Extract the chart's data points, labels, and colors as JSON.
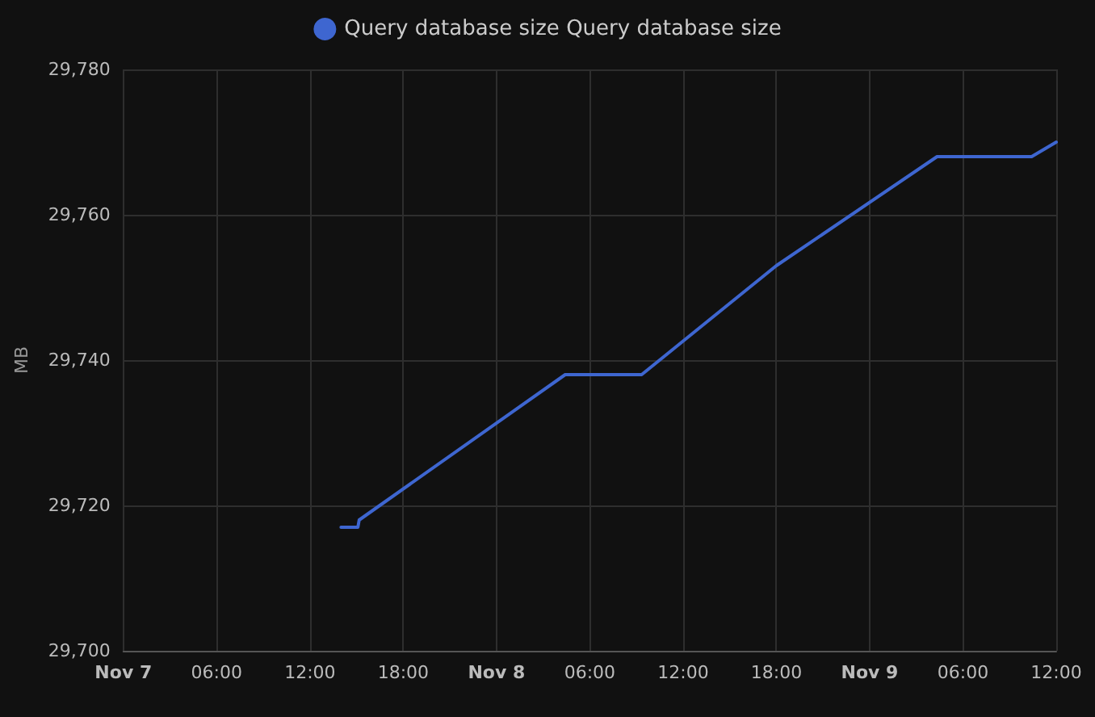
{
  "chart_data": {
    "type": "line",
    "ylabel": "MB",
    "legend": "top",
    "grid": true,
    "marker": "none",
    "line_style": "solid",
    "xlim": [
      "--11-07T00:00",
      "--11-09T12:00"
    ],
    "xticks": [
      {
        "value": "--11-07T00:00",
        "label": "Nov 7"
      },
      {
        "value": "--11-07T06:00",
        "label": "06:00"
      },
      {
        "value": "--11-07T12:00",
        "label": "12:00"
      },
      {
        "value": "--11-07T18:00",
        "label": "18:00"
      },
      {
        "value": "--11-08T00:00",
        "label": "Nov 8"
      },
      {
        "value": "--11-08T06:00",
        "label": "06:00"
      },
      {
        "value": "--11-08T12:00",
        "label": "12:00"
      },
      {
        "value": "--11-08T18:00",
        "label": "18:00"
      },
      {
        "value": "--11-09T00:00",
        "label": "Nov 9"
      },
      {
        "value": "--11-09T06:00",
        "label": "06:00"
      },
      {
        "value": "--11-09T12:00",
        "label": "12:00"
      }
    ],
    "ylim": [
      29700,
      29780
    ],
    "yticks": [
      {
        "value": 29700,
        "label": "29,700"
      },
      {
        "value": 29720,
        "label": "29,720"
      },
      {
        "value": 29740,
        "label": "29,740"
      },
      {
        "value": 29760,
        "label": "29,760"
      },
      {
        "value": 29780,
        "label": "29,780"
      }
    ],
    "series": [
      {
        "name": "Query database size Query database size",
        "color": "#3e66d0",
        "x": [
          "--11-07T14:00",
          "--11-07T15:05",
          "--11-07T15:10",
          "--11-08T04:25",
          "--11-08T09:20",
          "--11-08T18:00",
          "--11-09T04:20",
          "--11-09T10:25",
          "--11-09T12:00"
        ],
        "values": [
          29717,
          29717,
          29718,
          29738,
          29738,
          29753,
          29768,
          29768,
          29770
        ]
      }
    ]
  }
}
